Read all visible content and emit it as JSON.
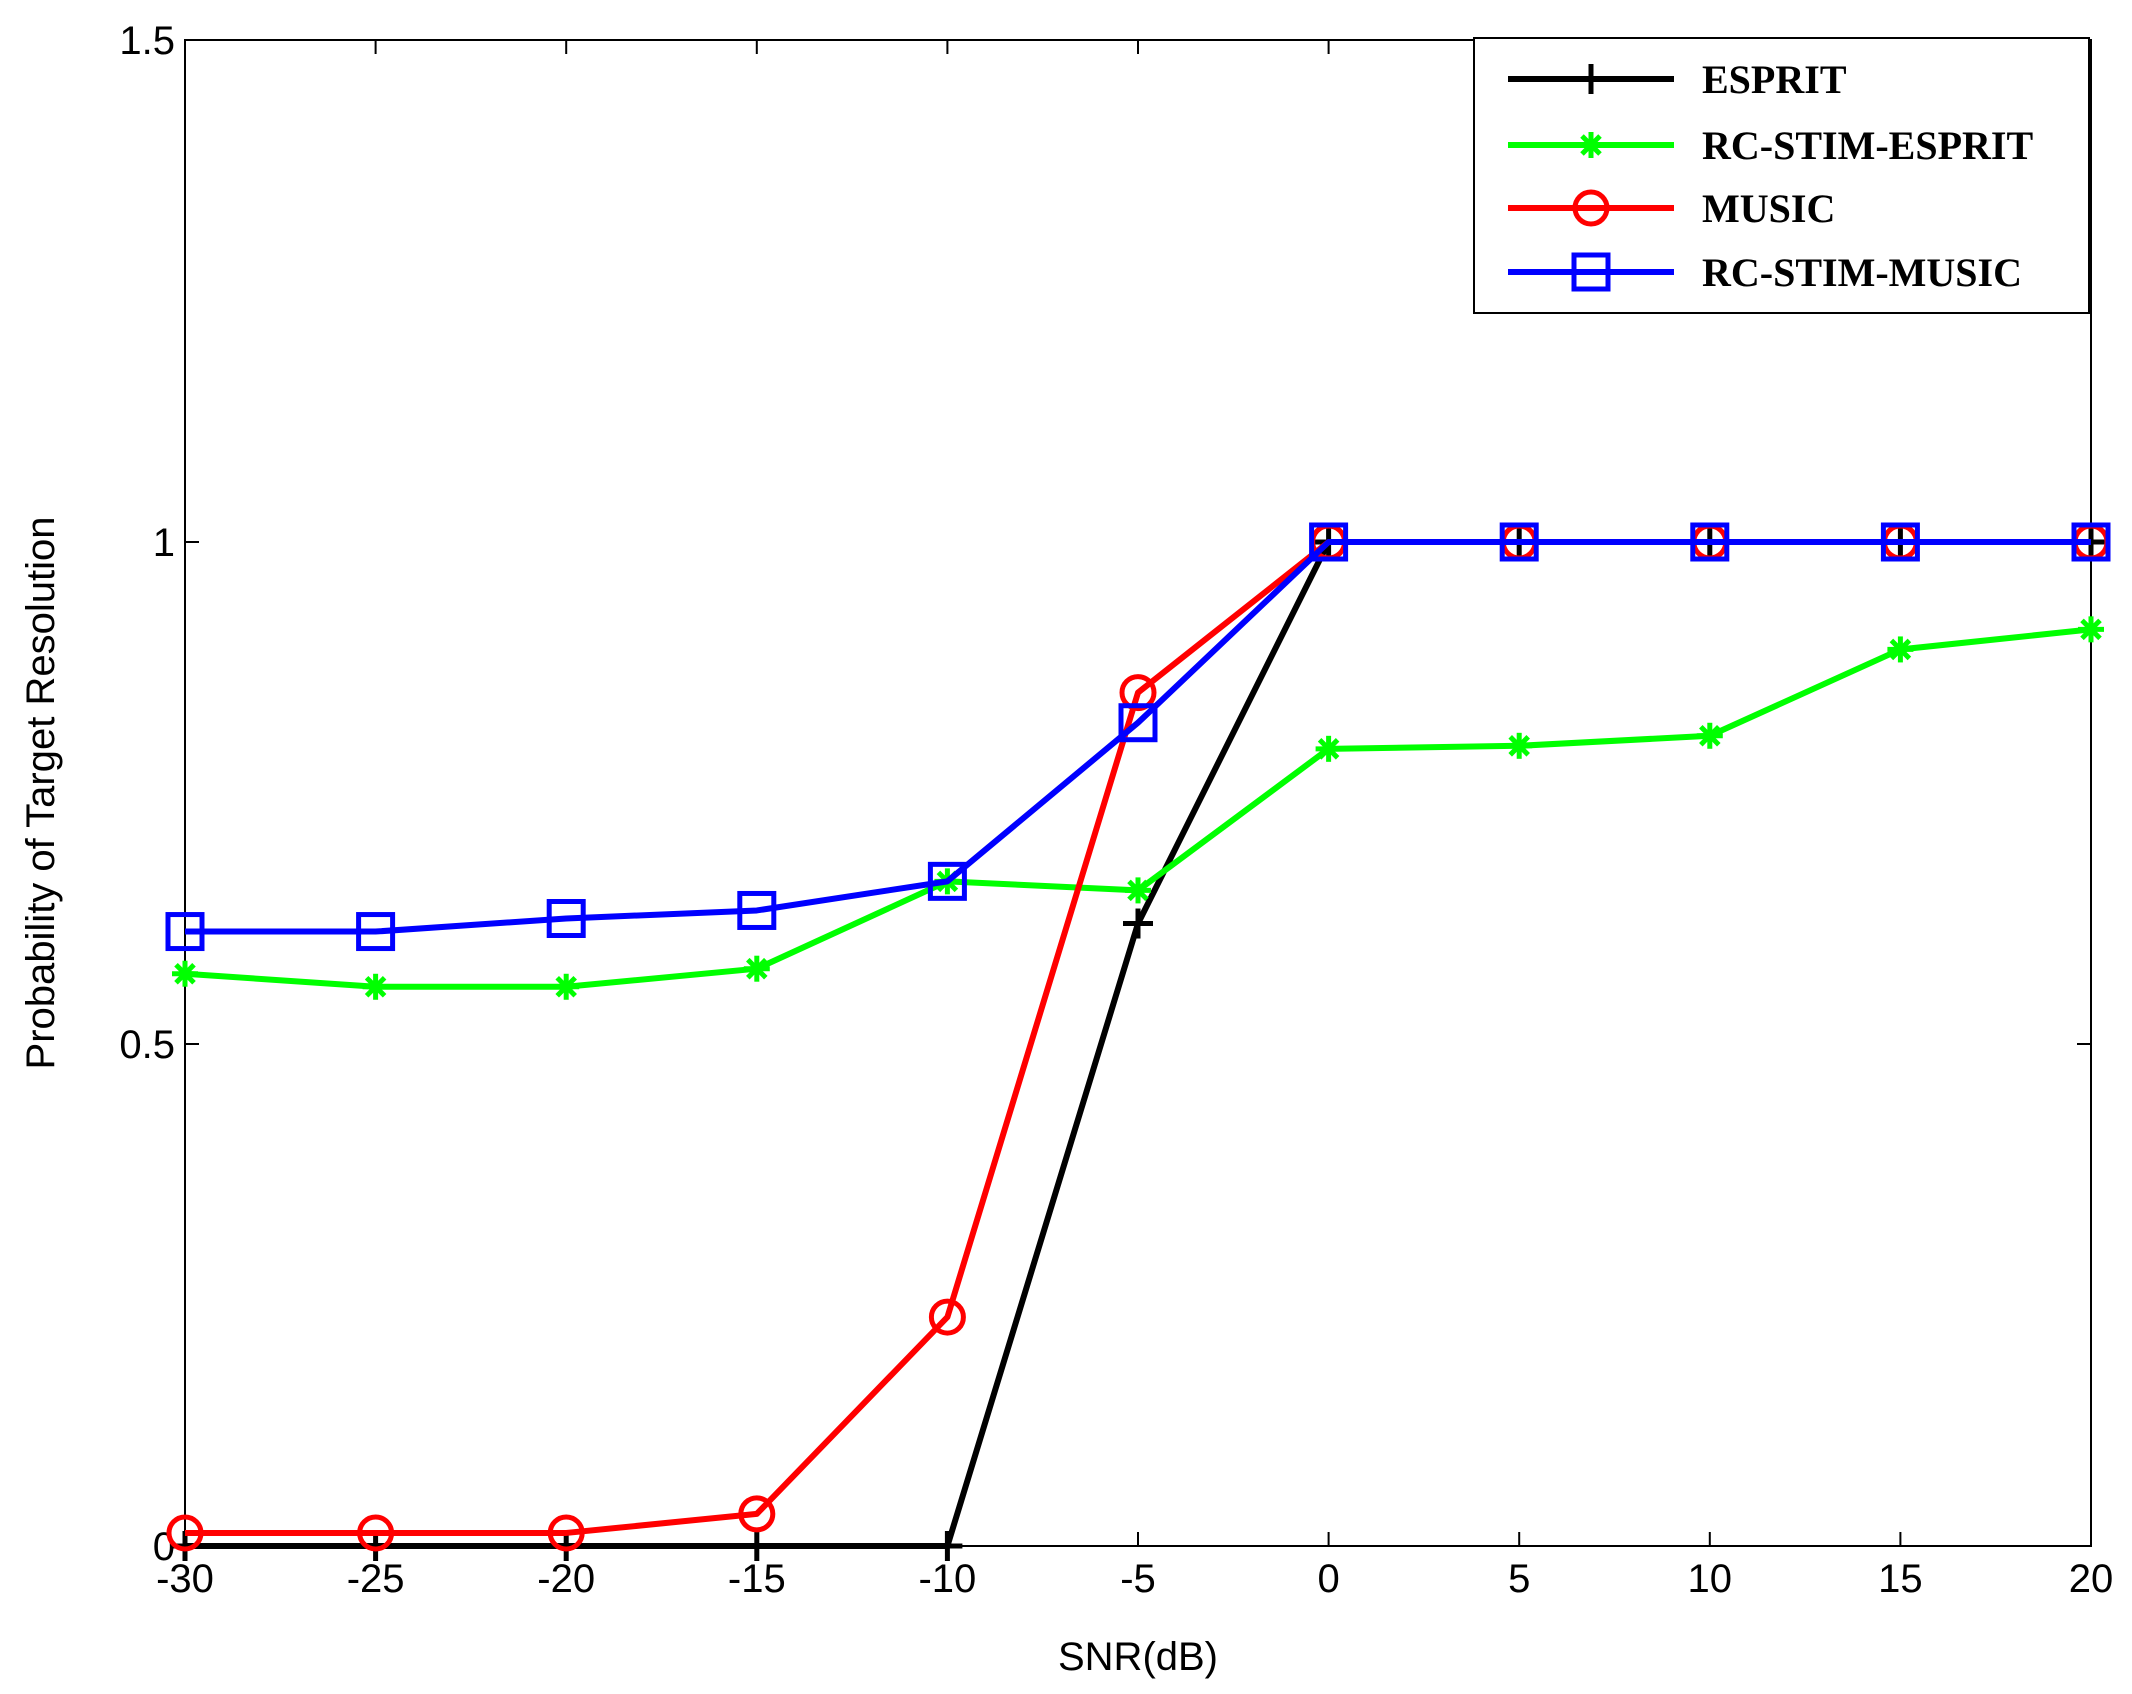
{
  "chart_data": {
    "type": "line",
    "title": "",
    "xlabel": "SNR(dB)",
    "ylabel": "Probability of Target Resolution",
    "x": [
      -30,
      -25,
      -20,
      -15,
      -10,
      -5,
      0,
      5,
      10,
      15,
      20
    ],
    "xlim": [
      -30,
      20
    ],
    "ylim": [
      0,
      1.5
    ],
    "xticks": [
      "-30",
      "-25",
      "-20",
      "-15",
      "-10",
      "-5",
      "0",
      "5",
      "10",
      "15",
      "20"
    ],
    "yticks": [
      "0",
      "0.5",
      "1",
      "1.5"
    ],
    "xtick_values": [
      -30,
      -25,
      -20,
      -15,
      -10,
      -5,
      0,
      5,
      10,
      15,
      20
    ],
    "ytick_values": [
      0,
      0.5,
      1,
      1.5
    ],
    "grid": false,
    "legend_position": "top-right",
    "series": [
      {
        "name": "ESPRIT",
        "color": "#000000",
        "marker": "plus",
        "values": [
          0,
          0,
          0,
          0,
          0,
          0.62,
          1,
          1,
          1,
          1,
          1
        ]
      },
      {
        "name": "RC-STIM-ESPRIT",
        "color": "#00ff00",
        "marker": "star",
        "values": [
          0.57,
          0.557,
          0.557,
          0.575,
          0.662,
          0.653,
          0.794,
          0.797,
          0.807,
          0.893,
          0.913
        ]
      },
      {
        "name": "MUSIC",
        "color": "#ff0000",
        "marker": "circle",
        "values": [
          0.013,
          0.013,
          0.013,
          0.032,
          0.228,
          0.85,
          1,
          1,
          1,
          1,
          1
        ]
      },
      {
        "name": "RC-STIM-MUSIC",
        "color": "#0000ff",
        "marker": "square",
        "values": [
          0.612,
          0.612,
          0.625,
          0.633,
          0.662,
          0.82,
          1,
          1,
          1,
          1,
          1
        ]
      }
    ]
  }
}
